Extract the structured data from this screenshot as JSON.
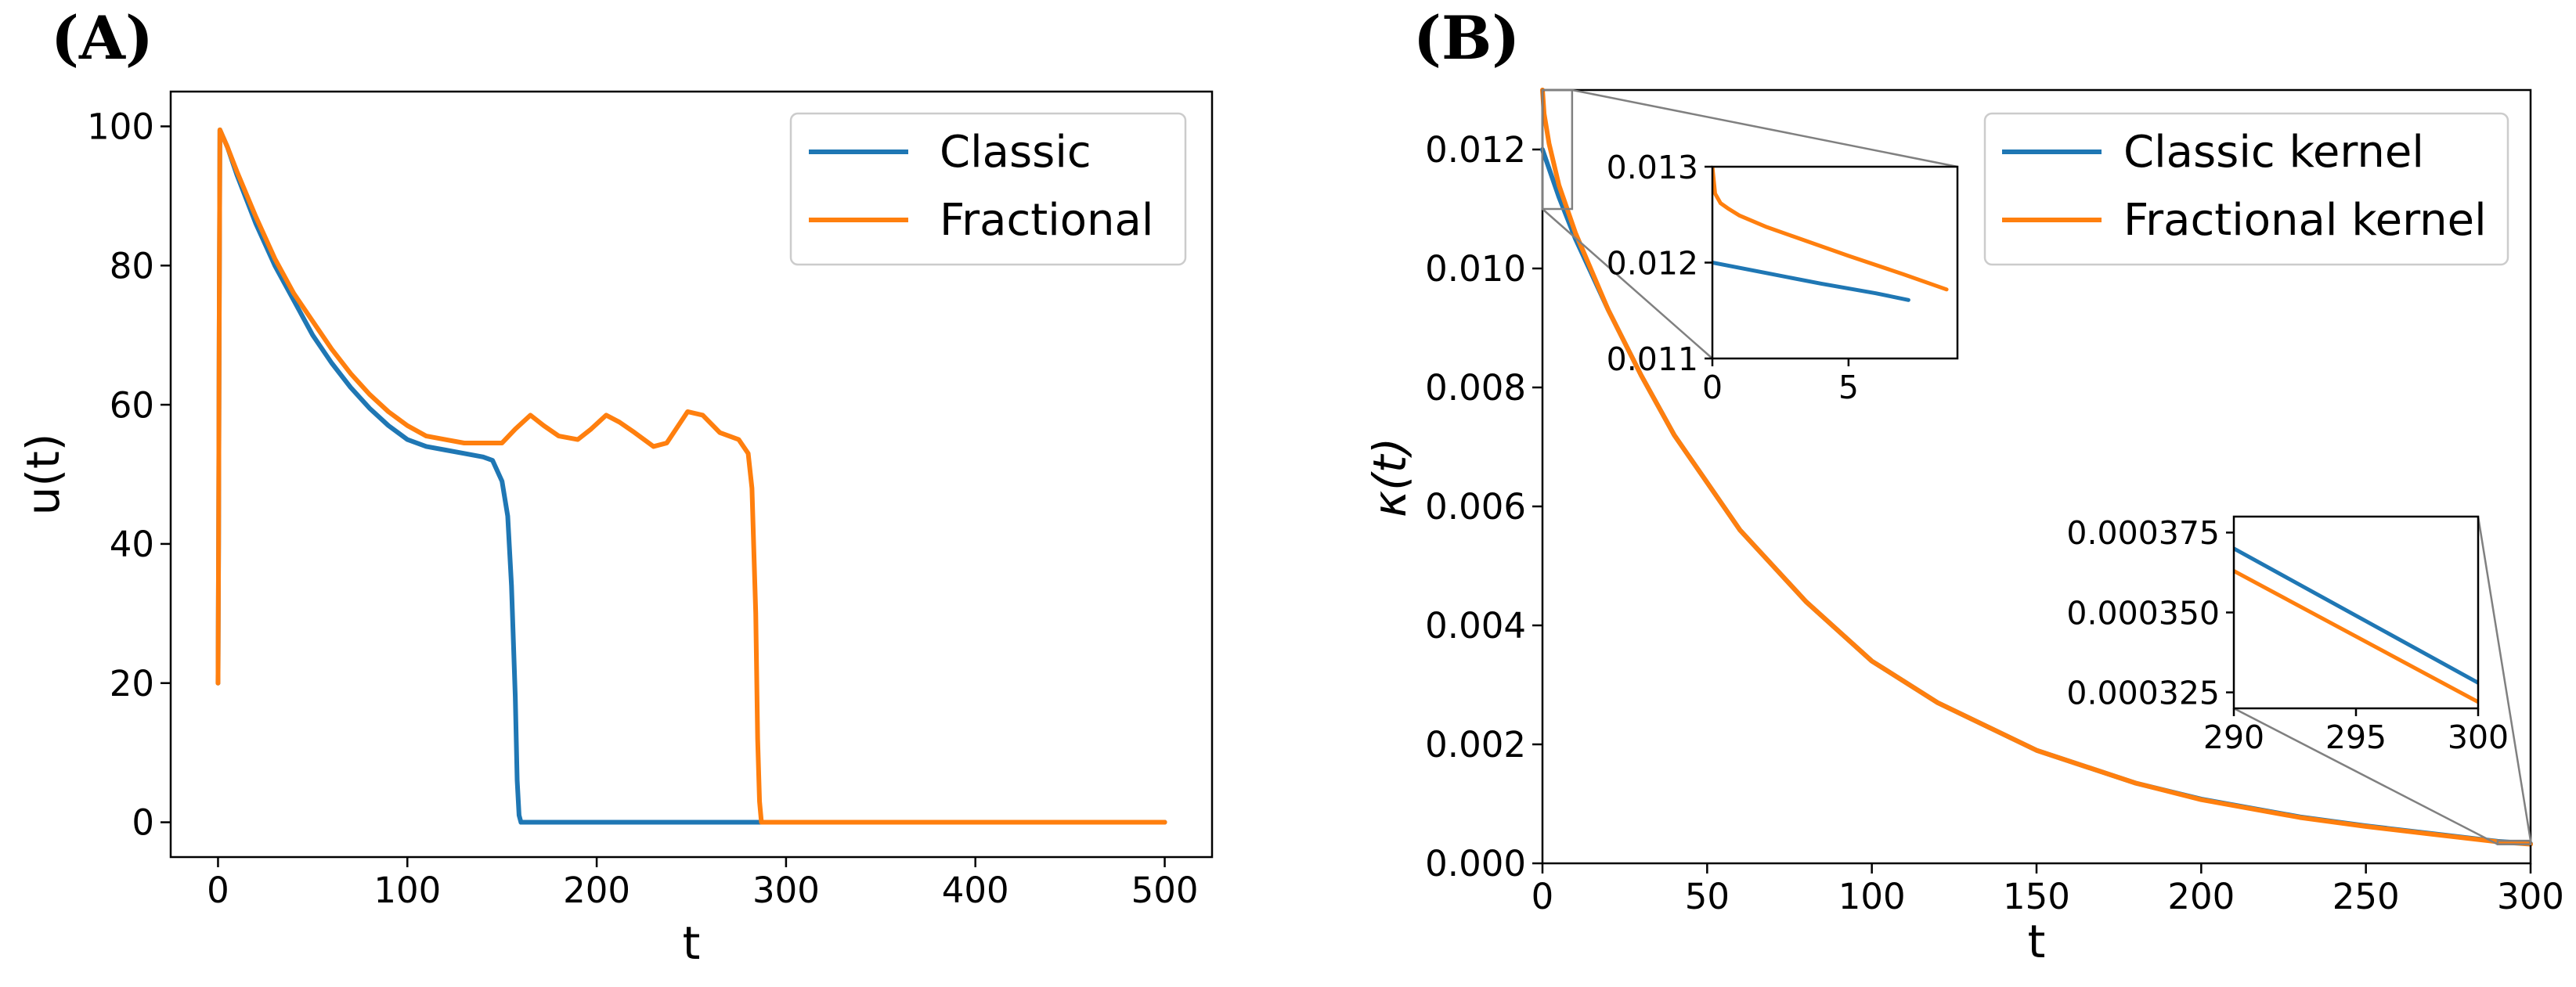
{
  "chart_data": [
    {
      "type": "line",
      "panel_label": "(A)",
      "xlabel": "t",
      "ylabel": "u(t)",
      "xlim": [
        -25,
        525
      ],
      "ylim": [
        -5,
        105
      ],
      "xticks": [
        0,
        100,
        200,
        300,
        400,
        500
      ],
      "yticks": [
        0,
        20,
        40,
        60,
        80,
        100
      ],
      "legend": "top-right",
      "series": [
        {
          "name": "Classic",
          "color": "#1f77b4",
          "x": [
            0,
            0.3,
            0.6,
            1,
            5,
            10,
            20,
            30,
            40,
            50,
            60,
            70,
            80,
            90,
            100,
            110,
            120,
            130,
            140,
            145,
            150,
            153,
            155,
            157,
            158,
            159,
            160,
            300,
            500
          ],
          "y": [
            20,
            40,
            70,
            99.5,
            97,
            93,
            86,
            80,
            75,
            70,
            66,
            62.5,
            59.5,
            57,
            55,
            54,
            53.5,
            53,
            52.5,
            52,
            49,
            44,
            34,
            18,
            6,
            1,
            0,
            0,
            0
          ]
        },
        {
          "name": "Fractional",
          "color": "#ff7f0e",
          "x": [
            0,
            0.3,
            0.6,
            1,
            5,
            10,
            20,
            30,
            40,
            50,
            60,
            70,
            80,
            90,
            100,
            110,
            120,
            130,
            140,
            150,
            157,
            165,
            172,
            180,
            190,
            197,
            205,
            212,
            220,
            230,
            237,
            248,
            256,
            265,
            275,
            280,
            282,
            284,
            285,
            286,
            287,
            300,
            400,
            500
          ],
          "y": [
            20,
            40,
            70,
            99.5,
            97,
            93.5,
            87,
            81,
            76,
            72,
            68,
            64.5,
            61.5,
            59,
            57,
            55.5,
            55,
            54.5,
            54.5,
            54.5,
            56.5,
            58.5,
            57,
            55.5,
            55,
            56.5,
            58.5,
            57.5,
            56,
            54,
            54.5,
            59,
            58.5,
            56,
            55,
            53,
            48,
            30,
            12,
            3,
            0,
            0,
            0,
            0
          ]
        }
      ]
    },
    {
      "type": "line",
      "panel_label": "(B)",
      "xlabel": "t",
      "ylabel": "κ(t)",
      "xlim": [
        0,
        300
      ],
      "ylim": [
        0,
        0.013
      ],
      "xticks": [
        0,
        50,
        100,
        150,
        200,
        250,
        300
      ],
      "yticks": [
        "0.000",
        "0.002",
        "0.004",
        "0.006",
        "0.008",
        "0.010",
        "0.012"
      ],
      "legend": "top-right",
      "series": [
        {
          "name": "Classic kernel",
          "color": "#1f77b4",
          "x": [
            0,
            5,
            10,
            20,
            30,
            40,
            50,
            60,
            80,
            100,
            120,
            150,
            180,
            200,
            230,
            250,
            270,
            290,
            300
          ],
          "y": [
            0.012,
            0.0112,
            0.0105,
            0.0093,
            0.0082,
            0.0072,
            0.0064,
            0.0056,
            0.0044,
            0.0034,
            0.0027,
            0.0019,
            0.00135,
            0.00108,
            0.00078,
            0.00063,
            0.0005,
            0.00037,
            0.00033
          ]
        },
        {
          "name": "Fractional kernel",
          "color": "#ff7f0e",
          "x": [
            0,
            0.5,
            2,
            5,
            10,
            20,
            30,
            40,
            50,
            60,
            80,
            100,
            120,
            150,
            180,
            200,
            230,
            250,
            270,
            290,
            300
          ],
          "y": [
            0.013,
            0.0126,
            0.0121,
            0.0114,
            0.0106,
            0.0093,
            0.0082,
            0.0072,
            0.0064,
            0.0056,
            0.0044,
            0.0034,
            0.0027,
            0.0019,
            0.00135,
            0.00107,
            0.00077,
            0.00062,
            0.00049,
            0.000362,
            0.000322
          ]
        }
      ],
      "insets": [
        {
          "xlim": [
            0,
            9
          ],
          "ylim": [
            0.011,
            0.013
          ],
          "xticks": [
            "0",
            "5"
          ],
          "yticks": [
            "0.011",
            "0.012",
            "0.013"
          ],
          "series": [
            {
              "name": "Classic kernel",
              "x": [
                0,
                2,
                4,
                6,
                7.2
              ],
              "y": [
                0.012,
                0.01189,
                0.01178,
                0.01168,
                0.01161
              ]
            },
            {
              "name": "Fractional kernel",
              "x": [
                0,
                0.1,
                0.3,
                0.6,
                1,
                2,
                3,
                5,
                7,
                8.6
              ],
              "y": [
                0.013,
                0.01272,
                0.01262,
                0.01256,
                0.01249,
                0.01237,
                0.01227,
                0.01207,
                0.01188,
                0.01172
              ]
            }
          ]
        },
        {
          "xlim": [
            290,
            300
          ],
          "ylim": [
            0.00032,
            0.00038
          ],
          "xticks": [
            "290",
            "295",
            "300"
          ],
          "yticks": [
            "0.000325",
            "0.000350",
            "0.000375"
          ],
          "series": [
            {
              "name": "Classic kernel",
              "x": [
                290,
                300
              ],
              "y": [
                0.00037,
                0.000328
              ]
            },
            {
              "name": "Fractional kernel",
              "x": [
                290,
                300
              ],
              "y": [
                0.000363,
                0.000322
              ]
            }
          ]
        }
      ]
    }
  ]
}
